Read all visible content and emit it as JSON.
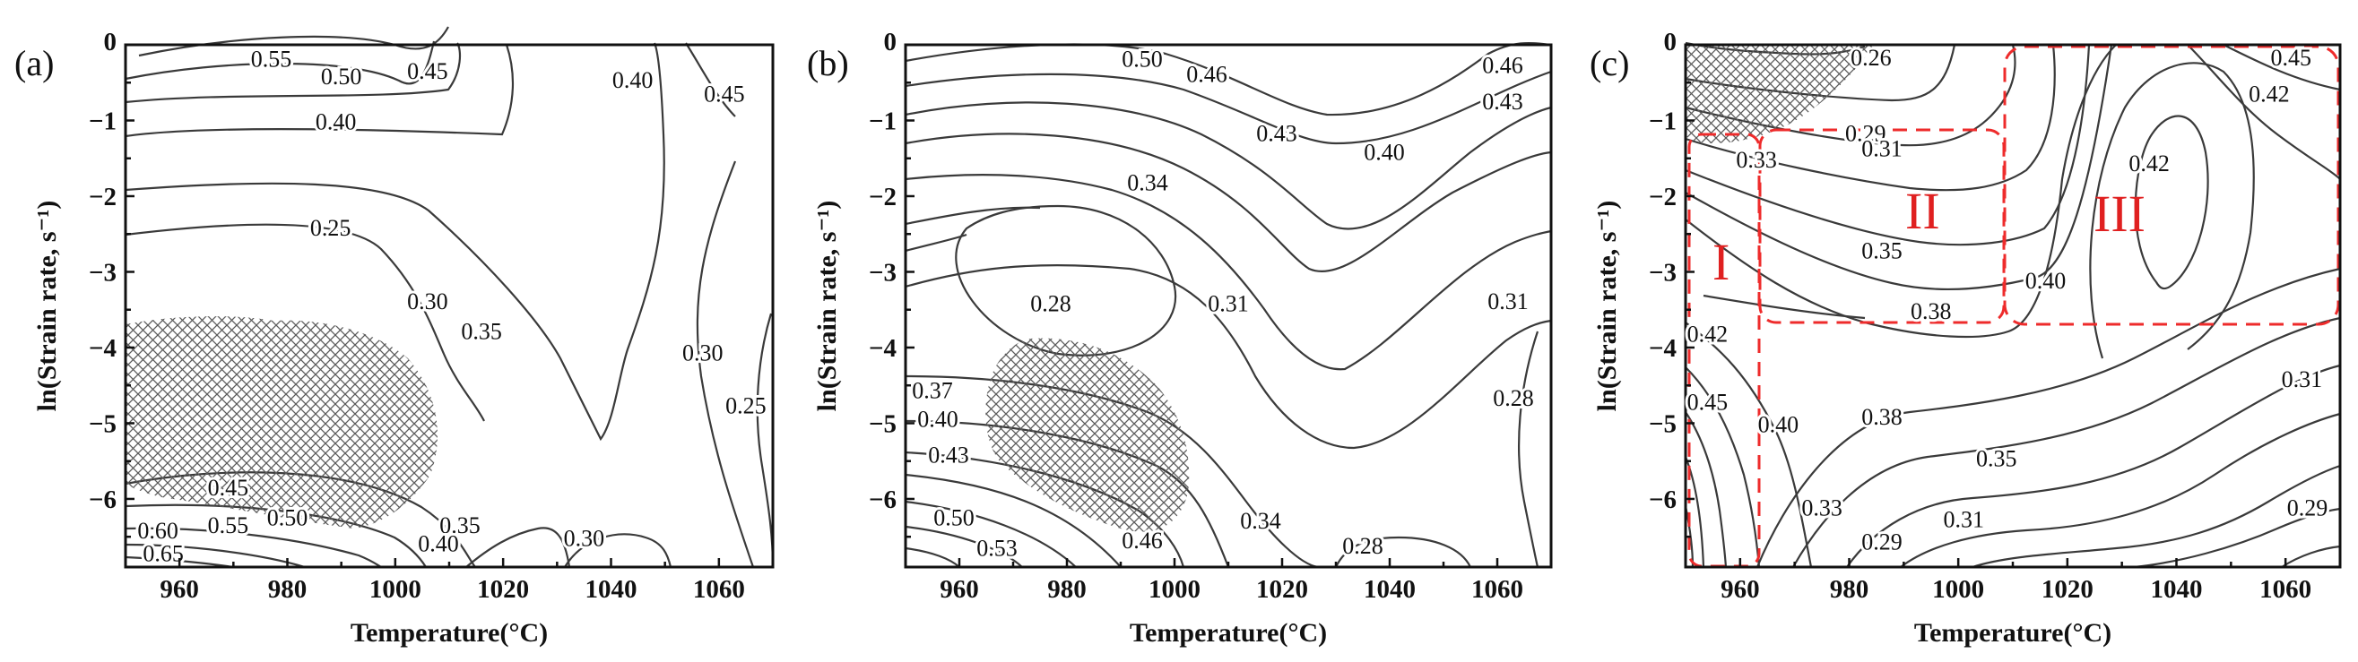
{
  "chart_data": [
    {
      "type": "contour",
      "panel_label": "(a)",
      "xlabel": "Temperature(°C)",
      "ylabel": "ln(Strain rate, s⁻¹)",
      "xlim": [
        950,
        1070
      ],
      "ylim": [
        -6.9,
        0
      ],
      "x_ticks": [
        "960",
        "980",
        "1000",
        "1020",
        "1040",
        "1060"
      ],
      "y_ticks": [
        "0",
        "−1",
        "−2",
        "−3",
        "−4",
        "−5",
        "−6"
      ],
      "contour_labels": [
        {
          "text": "0.55",
          "x": 977,
          "y": -0.22
        },
        {
          "text": "0.50",
          "x": 990,
          "y": -0.45
        },
        {
          "text": "0.45",
          "x": 1006,
          "y": -0.38
        },
        {
          "text": "0.40",
          "x": 1044,
          "y": -0.5
        },
        {
          "text": "0.45",
          "x": 1061,
          "y": -0.68
        },
        {
          "text": "0.40",
          "x": 989,
          "y": -1.05
        },
        {
          "text": "0.25",
          "x": 988,
          "y": -2.45
        },
        {
          "text": "0.30",
          "x": 1006,
          "y": -3.42
        },
        {
          "text": "0.35",
          "x": 1016,
          "y": -3.82
        },
        {
          "text": "0.30",
          "x": 1057,
          "y": -4.1
        },
        {
          "text": "0.25",
          "x": 1065,
          "y": -4.8
        },
        {
          "text": "0.45",
          "x": 969,
          "y": -5.88
        },
        {
          "text": "0.55",
          "x": 969,
          "y": -6.38
        },
        {
          "text": "0.50",
          "x": 980,
          "y": -6.28
        },
        {
          "text": "0.60",
          "x": 956,
          "y": -6.45
        },
        {
          "text": "0.65",
          "x": 957,
          "y": -6.75
        },
        {
          "text": "0.35",
          "x": 1012,
          "y": -6.38
        },
        {
          "text": "0.40",
          "x": 1008,
          "y": -6.62
        },
        {
          "text": "0.30",
          "x": 1035,
          "y": -6.55
        }
      ],
      "instability_region": "hatched, lower-left (approx. T 950–1003 °C, ln ε̇ −6.3 to −3.7)"
    },
    {
      "type": "contour",
      "panel_label": "(b)",
      "xlabel": "Temperature(°C)",
      "ylabel": "ln(Strain rate, s⁻¹)",
      "xlim": [
        950,
        1070
      ],
      "ylim": [
        -6.9,
        0
      ],
      "x_ticks": [
        "960",
        "980",
        "1000",
        "1020",
        "1040",
        "1060"
      ],
      "y_ticks": [
        "0",
        "−1",
        "−2",
        "−3",
        "−4",
        "−5",
        "−6"
      ],
      "contour_labels": [
        {
          "text": "0.50",
          "x": 994,
          "y": -0.22
        },
        {
          "text": "0.46",
          "x": 1006,
          "y": -0.42
        },
        {
          "text": "0.43",
          "x": 1019,
          "y": -1.2
        },
        {
          "text": "0.40",
          "x": 1039,
          "y": -1.45
        },
        {
          "text": "0.46",
          "x": 1061,
          "y": -0.3
        },
        {
          "text": "0.43",
          "x": 1061,
          "y": -0.78
        },
        {
          "text": "0.34",
          "x": 995,
          "y": -1.85
        },
        {
          "text": "0.28",
          "x": 977,
          "y": -3.45
        },
        {
          "text": "0.31",
          "x": 1010,
          "y": -3.45
        },
        {
          "text": "0.31",
          "x": 1062,
          "y": -3.42
        },
        {
          "text": "0.28",
          "x": 1063,
          "y": -4.7
        },
        {
          "text": "0.37",
          "x": 955,
          "y": -4.6
        },
        {
          "text": "0.40",
          "x": 956,
          "y": -4.98
        },
        {
          "text": "0.43",
          "x": 958,
          "y": -5.45
        },
        {
          "text": "0.50",
          "x": 959,
          "y": -6.28
        },
        {
          "text": "0.53",
          "x": 967,
          "y": -6.68
        },
        {
          "text": "0.46",
          "x": 994,
          "y": -6.58
        },
        {
          "text": "0.34",
          "x": 1016,
          "y": -6.32
        },
        {
          "text": "0.28",
          "x": 1035,
          "y": -6.65
        }
      ],
      "instability_region": "hatched, approx. T 964–1001 °C, ln ε̇ −6.3 to −3.7"
    },
    {
      "type": "contour",
      "panel_label": "(c)",
      "xlabel": "Temperature(°C)",
      "ylabel": "ln(Strain rate, s⁻¹)",
      "xlim": [
        950,
        1070
      ],
      "ylim": [
        -6.9,
        0
      ],
      "x_ticks": [
        "960",
        "980",
        "1000",
        "1020",
        "1040",
        "1060"
      ],
      "y_ticks": [
        "0",
        "−1",
        "−2",
        "−3",
        "−4",
        "−5",
        "−6"
      ],
      "contour_labels": [
        {
          "text": "0.26",
          "x": 984,
          "y": -0.2
        },
        {
          "text": "0.29",
          "x": 983,
          "y": -1.2
        },
        {
          "text": "0.31",
          "x": 986,
          "y": -1.4
        },
        {
          "text": "0.33",
          "x": 963,
          "y": -1.55
        },
        {
          "text": "0.42",
          "x": 1035,
          "y": -1.6
        },
        {
          "text": "0.45",
          "x": 1061,
          "y": -0.2
        },
        {
          "text": "0.42",
          "x": 1057,
          "y": -0.68
        },
        {
          "text": "0.35",
          "x": 986,
          "y": -2.75
        },
        {
          "text": "0.40",
          "x": 1016,
          "y": -3.15
        },
        {
          "text": "0.38",
          "x": 995,
          "y": -3.55
        },
        {
          "text": "0.42",
          "x": 954,
          "y": -3.85
        },
        {
          "text": "0.45",
          "x": 954,
          "y": -4.75
        },
        {
          "text": "0.40",
          "x": 967,
          "y": -5.05
        },
        {
          "text": "0.38",
          "x": 986,
          "y": -4.95
        },
        {
          "text": "0.35",
          "x": 1007,
          "y": -5.5
        },
        {
          "text": "0.33",
          "x": 975,
          "y": -6.15
        },
        {
          "text": "0.31",
          "x": 1001,
          "y": -6.3
        },
        {
          "text": "0.29",
          "x": 986,
          "y": -6.6
        },
        {
          "text": "0.31",
          "x": 1063,
          "y": -4.45
        },
        {
          "text": "0.29",
          "x": 1064,
          "y": -6.15
        }
      ],
      "region_labels": [
        "I",
        "II",
        "III"
      ],
      "regions": [
        {
          "label": "I",
          "x": [
            950,
            963
          ],
          "y": [
            -6.9,
            -1.15
          ]
        },
        {
          "label": "II",
          "x": [
            964,
            1009
          ],
          "y": [
            -3.6,
            -1.1
          ]
        },
        {
          "label": "III",
          "x": [
            1009,
            1070
          ],
          "y": [
            -3.65,
            0
          ]
        }
      ],
      "instability_region": "hatched, upper-left (approx. T 950–985 °C, ln ε̇ −1.5 to 0)",
      "region_box_color": "#ee2b2b"
    }
  ]
}
